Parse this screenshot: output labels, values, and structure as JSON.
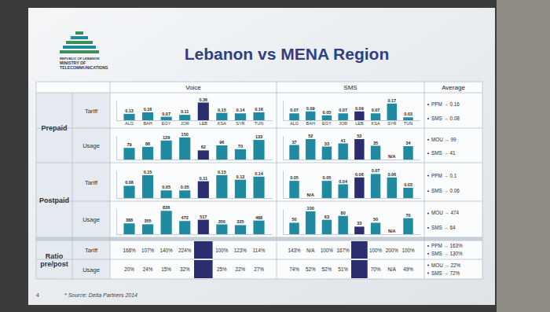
{
  "logo": [
    "REPUBLIC OF LEBANON",
    "MINISTRY OF",
    "TELECOMMUNICATIONS"
  ],
  "title": "Lebanon vs MENA Region",
  "columns": [
    "Voice",
    "SMS",
    "Average"
  ],
  "rows": [
    {
      "label": "Prepaid",
      "sub": [
        "Tariff",
        "Usage"
      ]
    },
    {
      "label": "Postpaid",
      "sub": [
        "Tariff",
        "Usage"
      ]
    },
    {
      "label": "Ratio pre/post",
      "sub": [
        "Tariff",
        "Usage"
      ]
    }
  ],
  "chart_data": [
    {
      "type": "bar",
      "categories": [
        "ALG",
        "BAH",
        "EGY",
        "JOR",
        "LEB",
        "KSA",
        "SYR",
        "TUN"
      ],
      "values": [
        0.13,
        0.16,
        0.07,
        0.11,
        0.36,
        0.15,
        0.14,
        0.16
      ],
      "colors": [
        "#1f8aa0",
        "#1f8aa0",
        "#1f8aa0",
        "#1f8aa0",
        "#2b2e6e",
        "#1f8aa0",
        "#1f8aa0",
        "#1f8aa0"
      ],
      "ylim": [
        0,
        0.4
      ],
      "data_labels": true,
      "tick_labels": "x"
    },
    {
      "type": "bar",
      "categories": [
        "ALG",
        "BAH",
        "EGY",
        "JOR",
        "LEB",
        "KSA",
        "SYR",
        "TUN"
      ],
      "values": [
        0.07,
        0.09,
        0.05,
        0.07,
        0.09,
        0.07,
        0.17,
        0.03
      ],
      "colors": [
        "#1f8aa0",
        "#1f8aa0",
        "#1f8aa0",
        "#1f8aa0",
        "#2b2e6e",
        "#1f8aa0",
        "#1f8aa0",
        "#1f8aa0"
      ],
      "ylim": [
        0,
        0.2
      ],
      "data_labels": true,
      "tick_labels": "x"
    },
    {
      "type": "bar",
      "categories": [
        null,
        null,
        null,
        null,
        null,
        null,
        null,
        null
      ],
      "values": [
        79,
        86,
        129,
        150,
        62,
        96,
        70,
        133
      ],
      "colors": [
        "#1f8aa0",
        "#1f8aa0",
        "#1f8aa0",
        "#1f8aa0",
        "#2b2e6e",
        "#1f8aa0",
        "#1f8aa0",
        "#1f8aa0"
      ],
      "ylim": [
        0,
        160
      ],
      "data_labels": true,
      "tick_labels": false
    },
    {
      "type": "bar",
      "categories": [
        null,
        null,
        null,
        null,
        null,
        null,
        null,
        null
      ],
      "values": [
        37,
        52,
        33,
        41,
        52,
        35,
        null,
        34
      ],
      "value_labels": [
        "37",
        "52",
        "33",
        "41",
        "52",
        "35",
        "N/A",
        "34"
      ],
      "colors": [
        "#1f8aa0",
        "#1f8aa0",
        "#1f8aa0",
        "#1f8aa0",
        "#2b2e6e",
        "#1f8aa0",
        "#1f8aa0",
        "#1f8aa0"
      ],
      "ylim": [
        0,
        60
      ],
      "data_labels": true,
      "tick_labels": false
    },
    {
      "type": "bar",
      "categories": [
        null,
        null,
        null,
        null,
        null,
        null,
        null,
        null
      ],
      "values": [
        0.08,
        0.15,
        0.05,
        0.05,
        0.11,
        0.15,
        0.12,
        0.14
      ],
      "colors": [
        "#1f8aa0",
        "#1f8aa0",
        "#1f8aa0",
        "#1f8aa0",
        "#2b2e6e",
        "#1f8aa0",
        "#1f8aa0",
        "#1f8aa0"
      ],
      "ylim": [
        0,
        0.18
      ],
      "data_labels": true,
      "tick_labels": false
    },
    {
      "type": "bar",
      "categories": [
        null,
        null,
        null,
        null,
        null,
        null,
        null,
        null
      ],
      "values": [
        0.05,
        null,
        0.05,
        0.04,
        0.06,
        0.07,
        0.06,
        0.03
      ],
      "value_labels": [
        "0.05",
        "N/A",
        "0.05",
        "0.04",
        "0.06",
        "0.07",
        "0.06",
        "0.03"
      ],
      "colors": [
        "#1f8aa0",
        "#1f8aa0",
        "#1f8aa0",
        "#1f8aa0",
        "#2b2e6e",
        "#1f8aa0",
        "#1f8aa0",
        "#1f8aa0"
      ],
      "ylim": [
        0,
        0.08
      ],
      "data_labels": true,
      "tick_labels": false
    },
    {
      "type": "bar",
      "categories": [
        null,
        null,
        null,
        null,
        null,
        null,
        null,
        null
      ],
      "values": [
        388,
        355,
        836,
        472,
        517,
        350,
        325,
        488
      ],
      "colors": [
        "#1f8aa0",
        "#1f8aa0",
        "#1f8aa0",
        "#1f8aa0",
        "#2b2e6e",
        "#1f8aa0",
        "#1f8aa0",
        "#1f8aa0"
      ],
      "ylim": [
        0,
        900
      ],
      "data_labels": true,
      "tick_labels": false
    },
    {
      "type": "bar",
      "categories": [
        null,
        null,
        null,
        null,
        null,
        null,
        null,
        null
      ],
      "values": [
        50,
        100,
        63,
        80,
        33,
        50,
        null,
        70
      ],
      "value_labels": [
        "50",
        "100",
        "63",
        "80",
        "33",
        "50",
        "N/A",
        "70"
      ],
      "colors": [
        "#1f8aa0",
        "#1f8aa0",
        "#1f8aa0",
        "#1f8aa0",
        "#2b2e6e",
        "#1f8aa0",
        "#1f8aa0",
        "#1f8aa0"
      ],
      "ylim": [
        0,
        110
      ],
      "data_labels": true,
      "tick_labels": false
    }
  ],
  "ratios": [
    {
      "voice": [
        "168%",
        "107%",
        "140%",
        "224%",
        null,
        "100%",
        "123%",
        "114%"
      ],
      "sms": [
        "143%",
        "N/A",
        "100%",
        "167%",
        null,
        "100%",
        "200%",
        "100%"
      ]
    },
    {
      "voice": [
        "20%",
        "24%",
        "15%",
        "32%",
        null,
        "25%",
        "22%",
        "27%"
      ],
      "sms": [
        "74%",
        "52%",
        "52%",
        "51%",
        null,
        "70%",
        "N/A",
        "49%"
      ]
    }
  ],
  "averages": [
    [
      "PPM → 0.16",
      "SMS → 0.08"
    ],
    [
      "MOU → 99",
      "SMS → 41"
    ],
    [
      "PPM → 0.1",
      "SMS → 0.06"
    ],
    [
      "MOU → 474",
      "SMS → 64"
    ],
    [
      "PPM → 163%",
      "SMS → 130%"
    ],
    [
      "MOU → 22%",
      "SMS → 72%"
    ]
  ],
  "page_number": "4",
  "source": "* Source: Delta Partners 2014"
}
